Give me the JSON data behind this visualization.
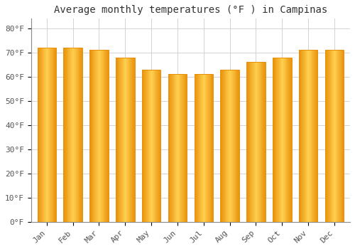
{
  "title": "Average monthly temperatures (°F ) in Campinas",
  "months": [
    "Jan",
    "Feb",
    "Mar",
    "Apr",
    "May",
    "Jun",
    "Jul",
    "Aug",
    "Sep",
    "Oct",
    "Nov",
    "Dec"
  ],
  "values": [
    72,
    72,
    71,
    68,
    63,
    61,
    61,
    63,
    66,
    68,
    71,
    71
  ],
  "bar_color_edge": "#E8900A",
  "bar_color_center": "#FFD050",
  "ylim": [
    0,
    84
  ],
  "yticks": [
    0,
    10,
    20,
    30,
    40,
    50,
    60,
    70,
    80
  ],
  "ytick_labels": [
    "0°F",
    "10°F",
    "20°F",
    "30°F",
    "40°F",
    "50°F",
    "60°F",
    "70°F",
    "80°F"
  ],
  "background_color": "#FFFFFF",
  "grid_color": "#CCCCCC",
  "title_fontsize": 10,
  "tick_fontsize": 8,
  "bar_width": 0.72,
  "gradient_steps": 30
}
